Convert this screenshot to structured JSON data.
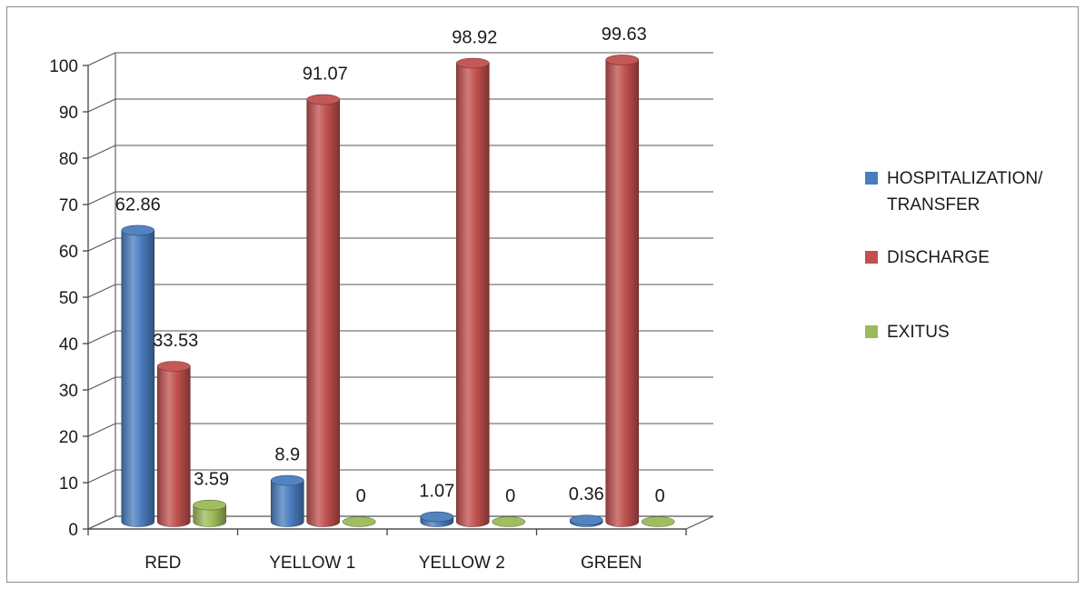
{
  "chart_data": {
    "type": "bar",
    "categories": [
      "RED",
      "YELLOW 1",
      "YELLOW 2",
      "GREEN"
    ],
    "series": [
      {
        "name": "HOSPITALIZATION/ TRANSFER",
        "legend_lines": [
          "HOSPITALIZATION/",
          "TRANSFER"
        ],
        "color": "#4a7dbf",
        "values": [
          62.86,
          8.9,
          1.07,
          0.36
        ]
      },
      {
        "name": "DISCHARGE",
        "legend_lines": [
          "DISCHARGE"
        ],
        "color": "#c0504d",
        "values": [
          33.53,
          91.07,
          98.92,
          99.63
        ]
      },
      {
        "name": "EXITUS",
        "legend_lines": [
          "EXITUS"
        ],
        "color": "#9bbb59",
        "values": [
          3.59,
          0,
          0,
          0
        ]
      }
    ],
    "data_labels": [
      [
        "62.86",
        "8.9",
        "1.07",
        "0.36"
      ],
      [
        "33.53",
        "91.07",
        "98.92",
        "99.63"
      ],
      [
        "3.59",
        "0",
        "0",
        "0"
      ]
    ],
    "yticks": [
      0,
      10,
      20,
      30,
      40,
      50,
      60,
      70,
      80,
      90,
      100
    ],
    "ylim": [
      0,
      100
    ],
    "grid": true,
    "bar_shape": "cylinder-3d",
    "legend_position": "right",
    "title": "",
    "xlabel": "",
    "ylabel": ""
  }
}
